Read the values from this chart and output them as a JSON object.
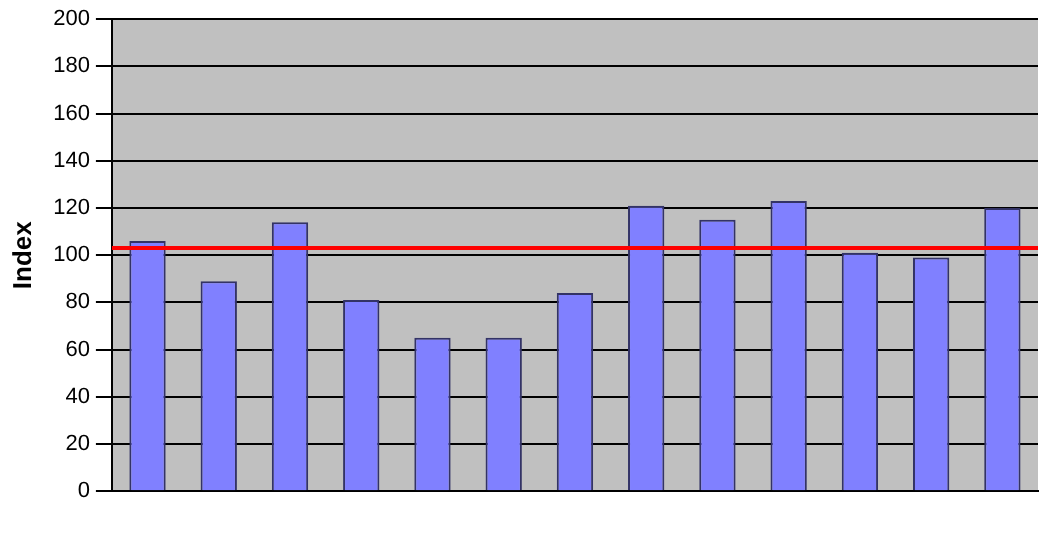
{
  "chart_data": {
    "type": "bar",
    "ylabel": "Index",
    "categories": [
      null,
      null,
      null,
      null,
      null,
      null,
      null,
      null,
      null,
      null,
      null,
      null,
      null
    ],
    "values": [
      106,
      89,
      114,
      81,
      65,
      65,
      84,
      121,
      115,
      123,
      101,
      99,
      120
    ],
    "color": "#8080ff",
    "ylim": [
      0,
      200
    ],
    "yticks": [
      0,
      20,
      40,
      60,
      80,
      100,
      120,
      140,
      160,
      180,
      200
    ],
    "grid": "y",
    "legend": false,
    "ref_lines": [
      {
        "axis": "y",
        "value": 103,
        "color": "#ff0000"
      }
    ]
  }
}
